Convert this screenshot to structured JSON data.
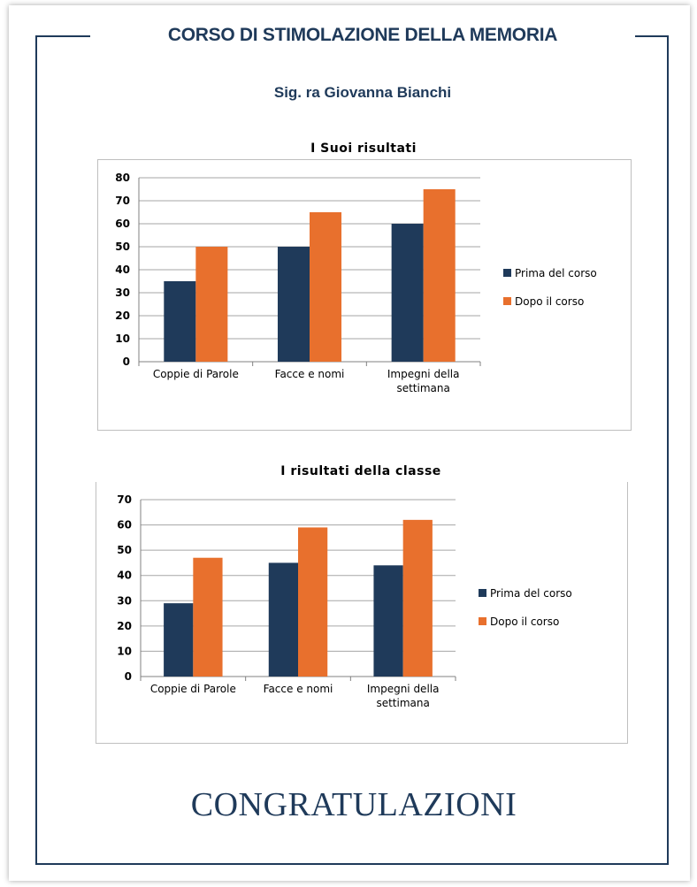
{
  "document": {
    "title": "CORSO DI STIMOLAZIONE DELLA MEMORIA",
    "subtitle": "Sig. ra Giovanna Bianchi",
    "closing": "CONGRATULAZIONI"
  },
  "colors": {
    "frame": "#1f3a5a",
    "series_before": "#1f3a5a",
    "series_after": "#e8702d"
  },
  "chart_data": [
    {
      "type": "bar",
      "title": "I Suoi risultati",
      "categories": [
        [
          "Coppie di Parole"
        ],
        [
          "Facce e nomi"
        ],
        [
          "Impegni della",
          "settimana"
        ]
      ],
      "series": [
        {
          "name": "Prima del  corso",
          "values": [
            35,
            50,
            60
          ]
        },
        {
          "name": "Dopo il corso",
          "values": [
            50,
            65,
            75
          ]
        }
      ],
      "ylim": [
        0,
        80
      ],
      "yticks": [
        0,
        10,
        20,
        30,
        40,
        50,
        60,
        70,
        80
      ],
      "grid": true,
      "legend": "right"
    },
    {
      "type": "bar",
      "title": "I risultati della classe",
      "categories": [
        [
          "Coppie di Parole"
        ],
        [
          "Facce e nomi"
        ],
        [
          "Impegni della",
          "settimana"
        ]
      ],
      "series": [
        {
          "name": "Prima del  corso",
          "values": [
            29,
            45,
            44
          ]
        },
        {
          "name": "Dopo il corso",
          "values": [
            47,
            59,
            62
          ]
        }
      ],
      "ylim": [
        0,
        70
      ],
      "yticks": [
        0,
        10,
        20,
        30,
        40,
        50,
        60,
        70
      ],
      "grid": true,
      "legend": "right"
    }
  ]
}
